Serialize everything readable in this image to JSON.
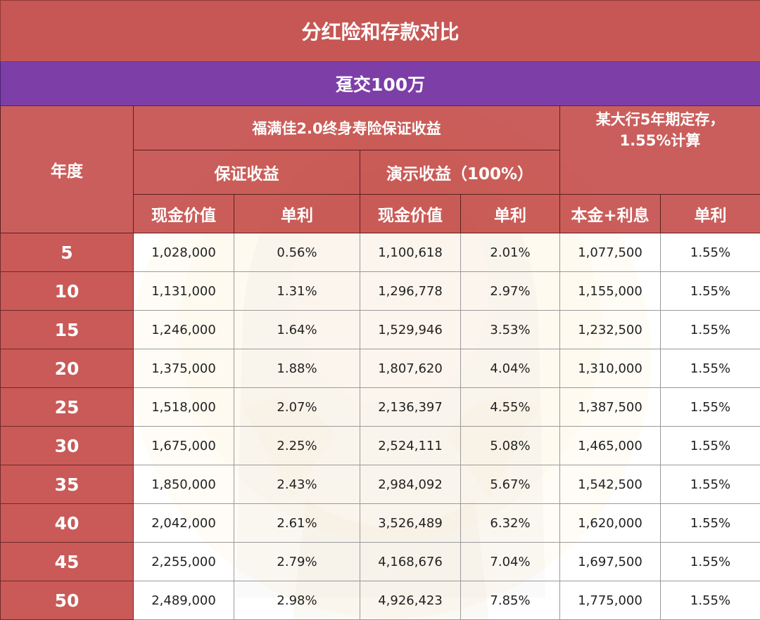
{
  "title": "分红险和存款对比",
  "subtitle": "趸交100万",
  "headers": {
    "year": "年度",
    "product": "福满佳2.0终身寿险保证收益",
    "bank_line1": "某大行5年期定存，",
    "bank_line2": "1.55%计算",
    "guaranteed": "保证收益",
    "demo": "演示收益（100%）",
    "cash_value_1": "现金价值",
    "simple_1": "单利",
    "cash_value_2": "现金价值",
    "simple_2": "单利",
    "principal_interest": "本金+利息",
    "simple_3": "单利"
  },
  "rows": [
    {
      "year": "5",
      "g_cash": "1,028,000",
      "g_rate": "0.56%",
      "d_cash": "1,100,618",
      "d_rate": "2.01%",
      "b_total": "1,077,500",
      "b_rate": "1.55%"
    },
    {
      "year": "10",
      "g_cash": "1,131,000",
      "g_rate": "1.31%",
      "d_cash": "1,296,778",
      "d_rate": "2.97%",
      "b_total": "1,155,000",
      "b_rate": "1.55%"
    },
    {
      "year": "15",
      "g_cash": "1,246,000",
      "g_rate": "1.64%",
      "d_cash": "1,529,946",
      "d_rate": "3.53%",
      "b_total": "1,232,500",
      "b_rate": "1.55%"
    },
    {
      "year": "20",
      "g_cash": "1,375,000",
      "g_rate": "1.88%",
      "d_cash": "1,807,620",
      "d_rate": "4.04%",
      "b_total": "1,310,000",
      "b_rate": "1.55%"
    },
    {
      "year": "25",
      "g_cash": "1,518,000",
      "g_rate": "2.07%",
      "d_cash": "2,136,397",
      "d_rate": "4.55%",
      "b_total": "1,387,500",
      "b_rate": "1.55%"
    },
    {
      "year": "30",
      "g_cash": "1,675,000",
      "g_rate": "2.25%",
      "d_cash": "2,524,111",
      "d_rate": "5.08%",
      "b_total": "1,465,000",
      "b_rate": "1.55%"
    },
    {
      "year": "35",
      "g_cash": "1,850,000",
      "g_rate": "2.43%",
      "d_cash": "2,984,092",
      "d_rate": "5.67%",
      "b_total": "1,542,500",
      "b_rate": "1.55%"
    },
    {
      "year": "40",
      "g_cash": "2,042,000",
      "g_rate": "2.61%",
      "d_cash": "3,526,489",
      "d_rate": "6.32%",
      "b_total": "1,620,000",
      "b_rate": "1.55%"
    },
    {
      "year": "45",
      "g_cash": "2,255,000",
      "g_rate": "2.79%",
      "d_cash": "4,168,676",
      "d_rate": "7.04%",
      "b_total": "1,697,500",
      "b_rate": "1.55%"
    },
    {
      "year": "50",
      "g_cash": "2,489,000",
      "g_rate": "2.98%",
      "d_cash": "4,926,423",
      "d_rate": "7.85%",
      "b_total": "1,775,000",
      "b_rate": "1.55%"
    }
  ]
}
